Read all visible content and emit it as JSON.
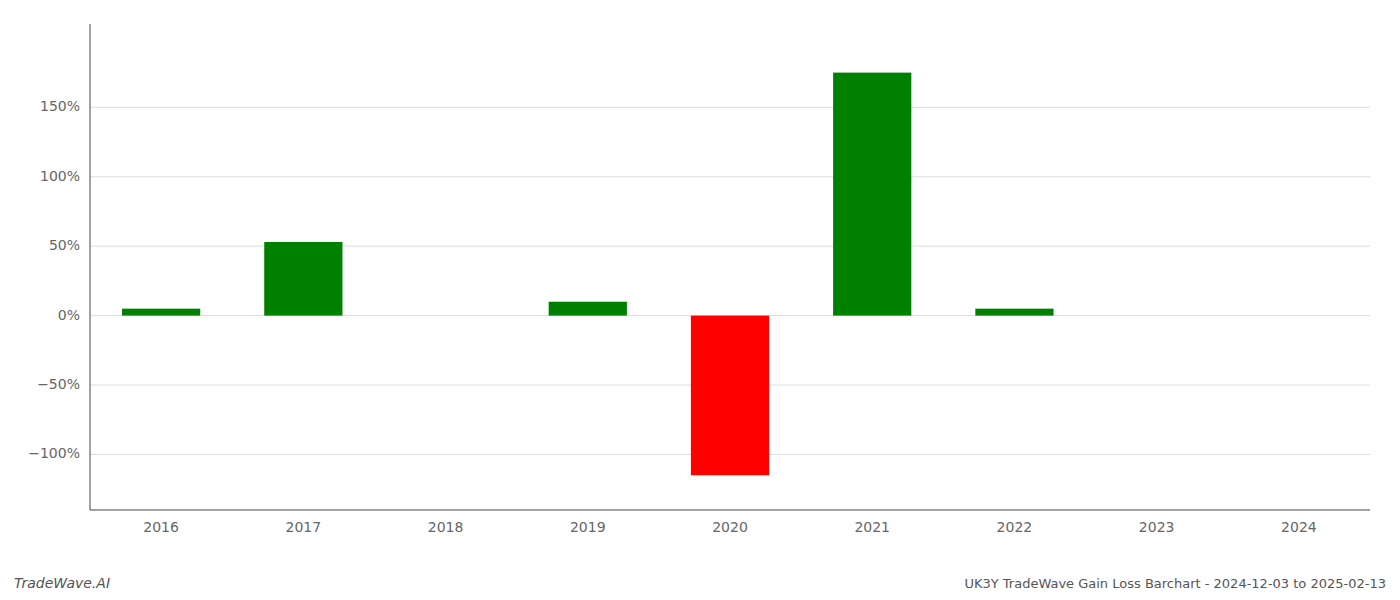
{
  "chart_data": {
    "type": "bar",
    "title": "UK3Y TradeWave Gain Loss Barchart - 2024-12-03 to 2025-02-13",
    "annotations": [
      "TradeWave.AI"
    ],
    "categories": [
      "2016",
      "2017",
      "2018",
      "2019",
      "2020",
      "2021",
      "2022",
      "2023",
      "2024"
    ],
    "values": [
      5.0,
      53.0,
      0.0,
      10.0,
      -115.0,
      175.0,
      5.0,
      0.0,
      0.0
    ],
    "colors": [
      "#008000",
      "#008000",
      "#008000",
      "#008000",
      "#ff0000",
      "#008000",
      "#008000",
      "#008000",
      "#008000"
    ],
    "ylim": [
      -140,
      210
    ],
    "yticks": [
      {
        "value": -100,
        "label": "−100%"
      },
      {
        "value": -50,
        "label": "−50%"
      },
      {
        "value": 0,
        "label": "0%"
      },
      {
        "value": 50,
        "label": "50%"
      },
      {
        "value": 100,
        "label": "100%"
      },
      {
        "value": 150,
        "label": "150%"
      }
    ],
    "grid": true
  }
}
